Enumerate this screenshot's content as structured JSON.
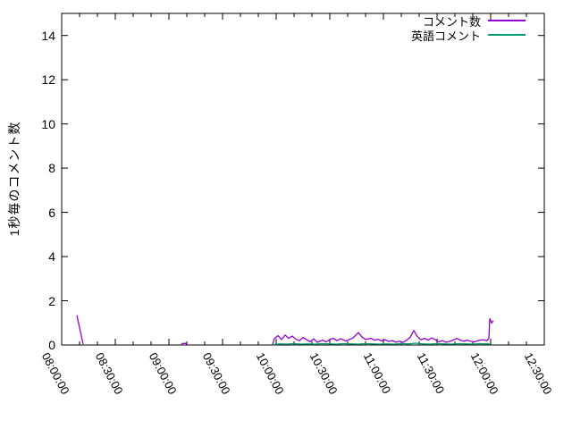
{
  "figure": {
    "background_color": "#ffffff",
    "axis_color": "#000000",
    "text_color": "#000000"
  },
  "chart_data": {
    "type": "line",
    "title": "",
    "xlabel": "",
    "ylabel": "1秒毎のコメント数",
    "legend_position": "top-right-inside",
    "grid": false,
    "x_axis": {
      "start": "08:00:00",
      "end": "12:30:00",
      "major_tick_interval_min": 30,
      "minor_tick_interval_min": 10,
      "tick_labels": [
        "08:00:00",
        "08:30:00",
        "09:00:00",
        "09:30:00",
        "10:00:00",
        "10:30:00",
        "11:00:00",
        "11:30:00",
        "12:00:00",
        "12:30:00"
      ],
      "tick_label_rotation_deg": 62
    },
    "y_axis": {
      "min": 0,
      "max": 15,
      "ticks": [
        0,
        2,
        4,
        6,
        8,
        10,
        12,
        14
      ]
    },
    "series": [
      {
        "name": "コメント数",
        "color": "#9400d3",
        "segments": [
          [
            [
              "08:08:30",
              1.35
            ],
            [
              "08:12:00",
              0.04
            ]
          ],
          [
            [
              "09:07:00",
              0.02
            ],
            [
              "09:07:30",
              0.07
            ],
            [
              "09:09:30",
              0.07
            ],
            [
              "09:10:00",
              0.02
            ]
          ],
          [
            [
              "09:58:00",
              0.02
            ],
            [
              "09:59:00",
              0.3
            ],
            [
              "10:01:00",
              0.42
            ],
            [
              "10:03:00",
              0.25
            ],
            [
              "10:05:00",
              0.45
            ],
            [
              "10:07:00",
              0.3
            ],
            [
              "10:09:00",
              0.4
            ],
            [
              "10:11:00",
              0.26
            ],
            [
              "10:13:00",
              0.2
            ],
            [
              "10:15:00",
              0.34
            ],
            [
              "10:17:00",
              0.24
            ],
            [
              "10:19:00",
              0.15
            ],
            [
              "10:21:00",
              0.28
            ],
            [
              "10:23:00",
              0.12
            ],
            [
              "10:26:00",
              0.22
            ],
            [
              "10:28:00",
              0.14
            ],
            [
              "10:30:00",
              0.25
            ],
            [
              "10:32:00",
              0.3
            ],
            [
              "10:34:00",
              0.2
            ],
            [
              "10:36:00",
              0.28
            ],
            [
              "10:39:00",
              0.18
            ],
            [
              "10:41:00",
              0.25
            ],
            [
              "10:43:00",
              0.32
            ],
            [
              "10:46:00",
              0.56
            ],
            [
              "10:48:00",
              0.36
            ],
            [
              "10:50:00",
              0.25
            ],
            [
              "10:53:00",
              0.3
            ],
            [
              "10:55:00",
              0.22
            ],
            [
              "10:57:00",
              0.26
            ],
            [
              "10:59:00",
              0.18
            ],
            [
              "11:01:00",
              0.24
            ],
            [
              "11:03:00",
              0.16
            ],
            [
              "11:05:00",
              0.2
            ],
            [
              "11:07:00",
              0.13
            ],
            [
              "11:09:00",
              0.17
            ],
            [
              "11:11:00",
              0.12
            ],
            [
              "11:13:00",
              0.22
            ],
            [
              "11:15:00",
              0.35
            ],
            [
              "11:17:00",
              0.65
            ],
            [
              "11:19:00",
              0.38
            ],
            [
              "11:21:00",
              0.24
            ],
            [
              "11:23:00",
              0.3
            ],
            [
              "11:25:00",
              0.22
            ],
            [
              "11:27:00",
              0.32
            ],
            [
              "11:29:00",
              0.24
            ],
            [
              "11:31:00",
              0.14
            ],
            [
              "11:33:00",
              0.2
            ],
            [
              "11:35:00",
              0.12
            ],
            [
              "11:37:00",
              0.16
            ],
            [
              "11:39:00",
              0.22
            ],
            [
              "11:41:00",
              0.3
            ],
            [
              "11:43:00",
              0.22
            ],
            [
              "11:45:00",
              0.17
            ],
            [
              "11:47:00",
              0.22
            ],
            [
              "11:49:00",
              0.16
            ],
            [
              "11:51:00",
              0.14
            ],
            [
              "11:53:00",
              0.2
            ],
            [
              "11:55:00",
              0.24
            ],
            [
              "11:57:00",
              0.22
            ],
            [
              "11:58:00",
              0.2
            ],
            [
              "11:59:00",
              0.3
            ],
            [
              "11:59:30",
              1.2
            ],
            [
              "12:00:30",
              1.0
            ],
            [
              "12:01:30",
              1.1
            ]
          ]
        ]
      },
      {
        "name": "英語コメント",
        "color": "#009e73",
        "segments": [
          [
            [
              "09:58:00",
              0.02
            ],
            [
              "10:02:00",
              0.05
            ],
            [
              "10:06:00",
              0.04
            ],
            [
              "10:10:00",
              0.06
            ],
            [
              "10:14:00",
              0.04
            ],
            [
              "10:18:00",
              0.05
            ],
            [
              "10:22:00",
              0.04
            ],
            [
              "10:26:00",
              0.06
            ],
            [
              "10:30:00",
              0.05
            ],
            [
              "10:34:00",
              0.04
            ],
            [
              "10:38:00",
              0.06
            ],
            [
              "10:42:00",
              0.05
            ],
            [
              "10:46:00",
              0.04
            ],
            [
              "10:50:00",
              0.06
            ],
            [
              "10:54:00",
              0.05
            ],
            [
              "10:58:00",
              0.04
            ],
            [
              "11:02:00",
              0.05
            ],
            [
              "11:06:00",
              0.04
            ],
            [
              "11:10:00",
              0.06
            ],
            [
              "11:14:00",
              0.05
            ],
            [
              "11:18:00",
              0.08
            ],
            [
              "11:22:00",
              0.05
            ],
            [
              "11:26:00",
              0.04
            ],
            [
              "11:30:00",
              0.06
            ],
            [
              "11:34:00",
              0.05
            ],
            [
              "11:38:00",
              0.04
            ],
            [
              "11:42:00",
              0.06
            ],
            [
              "11:46:00",
              0.05
            ],
            [
              "11:50:00",
              0.04
            ],
            [
              "11:54:00",
              0.06
            ],
            [
              "11:58:00",
              0.05
            ],
            [
              "12:00:00",
              0.04
            ]
          ]
        ]
      }
    ]
  },
  "legend": {
    "entries": [
      {
        "label": "コメント数",
        "color": "#9400d3"
      },
      {
        "label": "英語コメント",
        "color": "#009e73"
      }
    ]
  }
}
